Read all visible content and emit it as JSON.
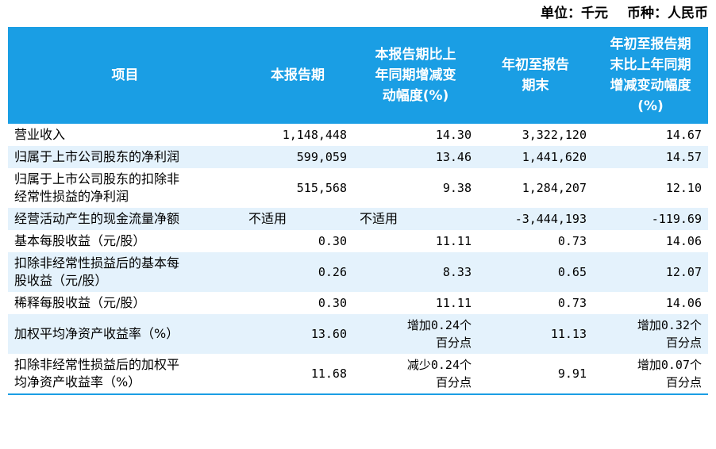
{
  "header": {
    "unit": "单位：千元",
    "currency": "币种：人民币"
  },
  "columns": [
    "项目",
    "本报告期",
    "本报告期比上\n年同期增减变\n动幅度(%)",
    "年初至报告\n期末",
    "年初至报告期\n末比上年同期\n增减变动幅度\n(%)"
  ],
  "rows": [
    [
      "营业收入",
      "1,148,448",
      "14.30",
      "3,322,120",
      "14.67"
    ],
    [
      "归属于上市公司股东的净利润",
      "599,059",
      "13.46",
      "1,441,620",
      "14.57"
    ],
    [
      "归属于上市公司股东的扣除非\n经常性损益的净利润",
      "515,568",
      "9.38",
      "1,284,207",
      "12.10"
    ],
    [
      "经营活动产生的现金流量净额",
      "不适用",
      "不适用",
      "-3,444,193",
      "-119.69"
    ],
    [
      "基本每股收益（元/股）",
      "0.30",
      "11.11",
      "0.73",
      "14.06"
    ],
    [
      "扣除非经常性损益后的基本每\n股收益（元/股）",
      "0.26",
      "8.33",
      "0.65",
      "12.07"
    ],
    [
      "稀释每股收益（元/股）",
      "0.30",
      "11.11",
      "0.73",
      "14.06"
    ],
    [
      "加权平均净资产收益率（%）",
      "13.60",
      "增加0.24个\n百分点",
      "11.13",
      "增加0.32个\n百分点"
    ],
    [
      "扣除非经常性损益后的加权平\n均净资产收益率（%）",
      "11.68",
      "减少0.24个\n百分点",
      "9.91",
      "增加0.07个\n百分点"
    ]
  ],
  "colors": {
    "header_bg": "#1a9ee4",
    "stripe": "#e4f2fc",
    "header_text": "#ffffff"
  }
}
